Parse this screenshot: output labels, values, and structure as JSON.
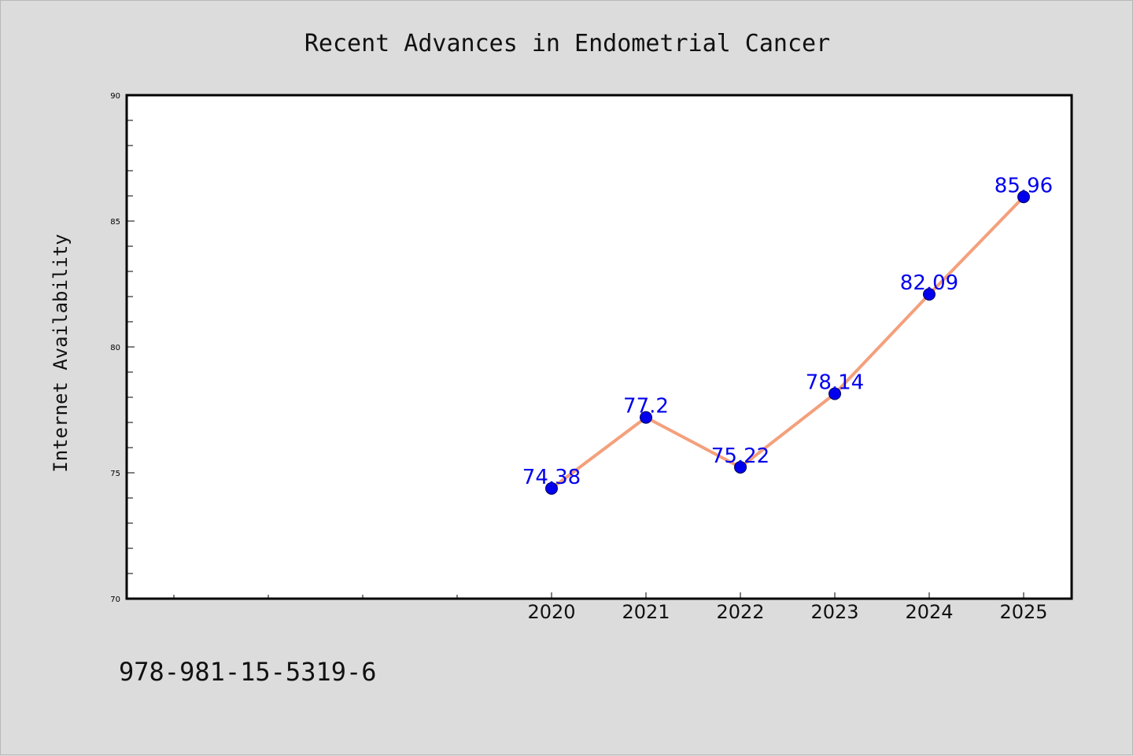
{
  "chart_data": {
    "type": "line",
    "title": "Recent Advances in Endometrial Cancer",
    "ylabel": "Internet Availability",
    "xlabel": "",
    "x": [
      "2020",
      "2021",
      "2022",
      "2023",
      "2024",
      "2025"
    ],
    "values": [
      74.38,
      77.2,
      75.22,
      78.14,
      82.09,
      85.96
    ],
    "data_labels": [
      "74.38",
      "77.2",
      "75.22",
      "78.14",
      "82.09",
      "85.96"
    ],
    "ylim": [
      70,
      90
    ],
    "yticks": [
      70,
      75,
      80,
      85,
      90
    ],
    "ytick_labels": [
      "70",
      "75",
      "80",
      "85",
      "90"
    ],
    "grid": false,
    "legend": "none",
    "line_color": "#f4a07c",
    "marker_color": "#0000ee",
    "label_color": "#0000ee"
  },
  "footer": {
    "isbn": "978-981-15-5319-6"
  }
}
